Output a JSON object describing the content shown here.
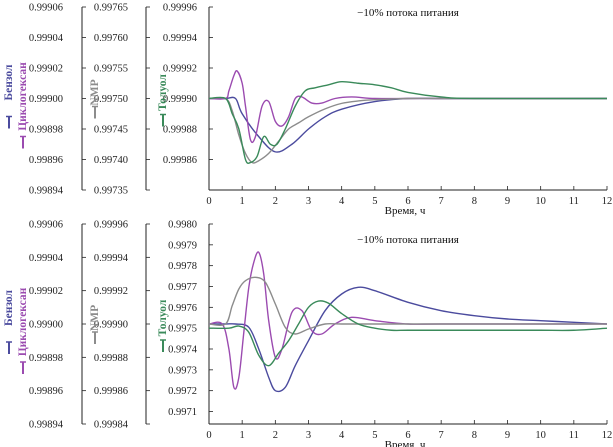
{
  "colors": {
    "benzene": "#4b4b9e",
    "cyclohexane": "#9b4bb0",
    "nmp": "#8c8c8c",
    "toluene": "#3a8a5a",
    "axis": "#222222"
  },
  "chart_data": [
    {
      "type": "line",
      "title": "−10% потока питания",
      "xlabel": "Время, ч",
      "xlim": [
        0,
        12
      ],
      "x_ticks": [
        "0",
        "1",
        "2",
        "3",
        "4",
        "5",
        "6",
        "7",
        "8",
        "9",
        "10",
        "11",
        "12"
      ],
      "axes": [
        {
          "label": "Бензол, Циклогексан",
          "ticks": [
            "0.99906",
            "0.99904",
            "0.99902",
            "0.99900",
            "0.99898",
            "0.99896",
            "0.99894"
          ],
          "ylim": [
            0.99894,
            0.99906
          ]
        },
        {
          "label": "NMP",
          "ticks": [
            "0.99765",
            "0.99760",
            "0.99755",
            "0.99750",
            "0.99745",
            "0.99740",
            "0.99735"
          ],
          "ylim": [
            0.99735,
            0.99765
          ]
        },
        {
          "label": "Толуол",
          "ticks": [
            "0.99996",
            "0.99994",
            "0.99992",
            "0.99990",
            "0.99988",
            "0.99986"
          ],
          "ylim": [
            0.99984,
            0.99996
          ]
        }
      ],
      "series": [
        {
          "name": "Бензол",
          "axis": 0,
          "x": [
            0,
            0.5,
            0.8,
            1,
            1.5,
            2,
            2.5,
            3,
            3.5,
            4,
            5,
            6,
            7,
            8,
            9,
            10,
            11,
            12
          ],
          "y": [
            0.999,
            0.999,
            0.999,
            0.99899,
            0.998975,
            0.998965,
            0.99897,
            0.99898,
            0.998988,
            0.998993,
            0.998998,
            0.999,
            0.999,
            0.999,
            0.999,
            0.999,
            0.999,
            0.999
          ]
        },
        {
          "name": "Циклогексан",
          "axis": 0,
          "x": [
            0,
            0.5,
            0.6,
            0.75,
            0.85,
            1,
            1.1,
            1.25,
            1.4,
            1.6,
            1.8,
            2,
            2.2,
            2.4,
            2.6,
            2.8,
            3.1,
            3.4,
            3.8,
            4.3,
            5,
            6,
            7,
            12
          ],
          "y": [
            0.999,
            0.999,
            0.999005,
            0.999015,
            0.999018,
            0.99901,
            0.998995,
            0.998973,
            0.998975,
            0.998995,
            0.998998,
            0.998985,
            0.998982,
            0.998988,
            0.999,
            0.999001,
            0.998997,
            0.998997,
            0.999,
            0.999001,
            0.999,
            0.999,
            0.999,
            0.999
          ]
        },
        {
          "name": "NMP",
          "axis": 1,
          "x": [
            0,
            0.5,
            0.7,
            0.9,
            1.1,
            1.3,
            1.5,
            1.8,
            2.1,
            2.4,
            2.7,
            3,
            3.5,
            4,
            4.5,
            5,
            6,
            7,
            8,
            9,
            12
          ],
          "y": [
            0.9975,
            0.9975,
            0.99748,
            0.99744,
            0.99741,
            0.997395,
            0.997398,
            0.99741,
            0.99743,
            0.99745,
            0.99746,
            0.99747,
            0.997483,
            0.997492,
            0.997496,
            0.997498,
            0.9975,
            0.9975,
            0.9975,
            0.9975,
            0.9975
          ]
        },
        {
          "name": "Толуол",
          "axis": 2,
          "x": [
            0,
            0.5,
            0.7,
            0.9,
            1.1,
            1.25,
            1.45,
            1.65,
            1.85,
            2.05,
            2.3,
            2.6,
            2.9,
            3.2,
            3.6,
            4,
            4.5,
            5,
            5.5,
            6,
            7,
            8,
            12
          ],
          "y": [
            0.9999,
            0.9999,
            0.99989,
            0.99988,
            0.99986,
            0.999858,
            0.999862,
            0.999875,
            0.99987,
            0.99987,
            0.99988,
            0.999895,
            0.999905,
            0.999907,
            0.999909,
            0.999911,
            0.99991,
            0.999909,
            0.999907,
            0.999904,
            0.999901,
            0.9999,
            0.9999
          ]
        }
      ]
    },
    {
      "type": "line",
      "title": "−10% потока питания",
      "xlabel": "Время, ч",
      "xlim": [
        0,
        12
      ],
      "x_ticks": [
        "0",
        "1",
        "2",
        "3",
        "4",
        "5",
        "6",
        "7",
        "8",
        "9",
        "10",
        "11",
        "12"
      ],
      "axes": [
        {
          "label": "Бензол, Циклогексан",
          "ticks": [
            "0.99906",
            "0.99904",
            "0.99902",
            "0.99900",
            "0.99898",
            "0.99896",
            "0.99894"
          ],
          "ylim": [
            0.99894,
            0.99906
          ]
        },
        {
          "label": "NMP",
          "ticks": [
            "0.99996",
            "0.99994",
            "0.99992",
            "0.99990",
            "0.99988",
            "0.99986",
            "0.99984"
          ],
          "ylim": [
            0.99984,
            0.99996
          ]
        },
        {
          "label": "Толуол",
          "ticks": [
            "0.9980",
            "0.9979",
            "0.9978",
            "0.9977",
            "0.9976",
            "0.9975",
            "0.9974",
            "0.9973",
            "0.9972",
            "0.9971"
          ],
          "ylim": [
            0.99704,
            0.998
          ]
        }
      ],
      "series": [
        {
          "name": "Бензол",
          "axis": 0,
          "x": [
            0,
            0.5,
            0.8,
            1.2,
            1.5,
            1.8,
            2,
            2.3,
            2.6,
            3,
            3.5,
            4,
            4.5,
            5,
            6,
            7,
            8,
            9,
            10,
            11,
            12
          ],
          "y": [
            0.999,
            0.999,
            0.999,
            0.998998,
            0.998985,
            0.998968,
            0.99896,
            0.998962,
            0.998975,
            0.99899,
            0.999008,
            0.999018,
            0.999022,
            0.99902,
            0.999013,
            0.999008,
            0.999005,
            0.999003,
            0.999002,
            0.999001,
            0.999
          ]
        },
        {
          "name": "Циклогексан",
          "axis": 0,
          "x": [
            0,
            0.4,
            0.6,
            0.75,
            0.9,
            1.05,
            1.2,
            1.35,
            1.5,
            1.65,
            1.8,
            2,
            2.2,
            2.5,
            2.8,
            3.1,
            3.4,
            3.8,
            4.3,
            5,
            6,
            7,
            12
          ],
          "y": [
            0.999,
            0.999,
            0.998985,
            0.998962,
            0.998968,
            0.998995,
            0.999022,
            0.999037,
            0.999043,
            0.99903,
            0.999002,
            0.99898,
            0.998985,
            0.999007,
            0.999008,
            0.998996,
            0.998994,
            0.999,
            0.999004,
            0.999002,
            0.999,
            0.999,
            0.999
          ]
        },
        {
          "name": "NMP",
          "axis": 1,
          "x": [
            0,
            0.5,
            0.7,
            0.9,
            1.1,
            1.4,
            1.7,
            2,
            2.3,
            2.6,
            3,
            3.5,
            4,
            5,
            6,
            7,
            12
          ],
          "y": [
            0.9999,
            0.9999,
            0.999911,
            0.999921,
            0.999926,
            0.999928,
            0.999925,
            0.999912,
            0.999898,
            0.999894,
            0.999897,
            0.9999,
            0.9999,
            0.9999,
            0.9999,
            0.9999,
            0.9999
          ]
        },
        {
          "name": "Толуол",
          "axis": 2,
          "x": [
            0,
            0.6,
            0.9,
            1.2,
            1.5,
            1.8,
            2.1,
            2.4,
            2.7,
            3,
            3.3,
            3.6,
            4,
            4.5,
            5,
            5.5,
            6,
            7,
            8,
            9,
            10,
            11,
            12
          ],
          "y": [
            0.9975,
            0.9975,
            0.99751,
            0.99748,
            0.99737,
            0.99732,
            0.99738,
            0.99744,
            0.99752,
            0.9976,
            0.99763,
            0.99762,
            0.99757,
            0.99752,
            0.9975,
            0.99749,
            0.99749,
            0.99749,
            0.99749,
            0.99749,
            0.99749,
            0.99749,
            0.9975
          ]
        }
      ]
    }
  ]
}
